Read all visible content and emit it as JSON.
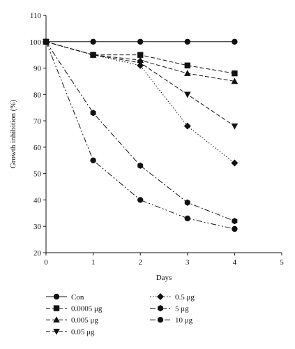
{
  "chart_data": {
    "type": "line",
    "title": "",
    "xlabel": "Days",
    "ylabel": "Growth inhibition (%)",
    "xlim": [
      0,
      5
    ],
    "ylim": [
      20,
      110
    ],
    "x_ticks": [
      0,
      1,
      2,
      3,
      4,
      5
    ],
    "y_ticks": [
      20,
      30,
      40,
      50,
      60,
      70,
      80,
      90,
      100,
      110
    ],
    "x": [
      0,
      1,
      2,
      3,
      4
    ],
    "grid": false,
    "legend_position": "bottom",
    "series": [
      {
        "name": "Con",
        "marker": "circle",
        "dash": "solid",
        "values": [
          100,
          100,
          100,
          100,
          100
        ]
      },
      {
        "name": "0.0005 μg",
        "marker": "square",
        "dash": "dashed",
        "values": [
          100,
          95,
          95,
          91,
          88
        ]
      },
      {
        "name": "0.005 μg",
        "marker": "triangle-up",
        "dash": "dashed",
        "values": [
          100,
          95,
          93,
          88,
          85
        ]
      },
      {
        "name": "0.05 μg",
        "marker": "triangle-down",
        "dash": "dashed",
        "values": [
          100,
          95,
          92,
          80,
          68
        ]
      },
      {
        "name": "0.5 μg",
        "marker": "diamond",
        "dash": "dotted",
        "values": [
          100,
          95,
          91,
          68,
          54
        ]
      },
      {
        "name": "5 μg",
        "marker": "hexagon",
        "dash": "dashdot",
        "values": [
          100,
          73,
          53,
          39,
          32
        ]
      },
      {
        "name": "10 μg",
        "marker": "circle",
        "dash": "dashdotdot",
        "values": [
          100,
          55,
          40,
          33,
          29
        ]
      }
    ]
  }
}
